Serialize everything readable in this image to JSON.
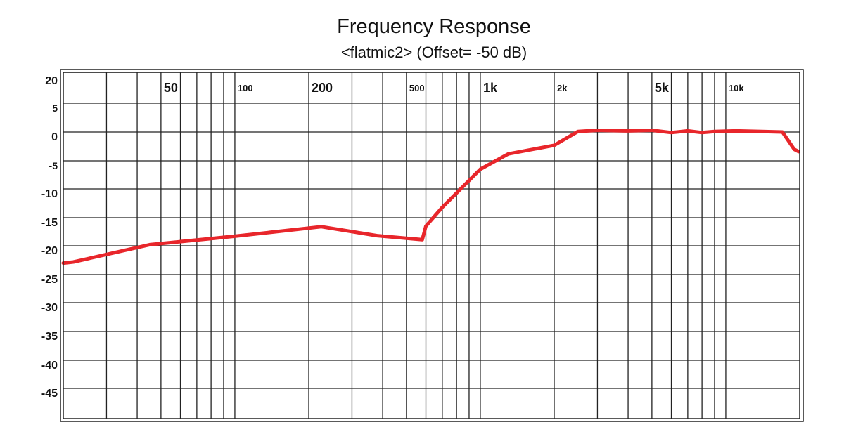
{
  "chart_data": {
    "type": "line",
    "title": "Frequency Response",
    "subtitle": "<flatmic2> (Offset= -50 dB)",
    "xlabel": "",
    "ylabel": "",
    "x_scale": "log",
    "xlim": [
      20,
      20000
    ],
    "y_ticks": [
      {
        "label": "20",
        "value": 20
      },
      {
        "label": "5",
        "value": 5
      },
      {
        "label": "0",
        "value": 0
      },
      {
        "label": "-5",
        "value": -5
      },
      {
        "label": "-10",
        "value": -10
      },
      {
        "label": "-15",
        "value": -15
      },
      {
        "label": "-20",
        "value": -20
      },
      {
        "label": "-25",
        "value": -25
      },
      {
        "label": "-30",
        "value": -30
      },
      {
        "label": "-35",
        "value": -35
      },
      {
        "label": "-40",
        "value": -40
      },
      {
        "label": "-45",
        "value": -45
      }
    ],
    "x_tick_labels": [
      {
        "label": "50",
        "value": 50,
        "size": "large"
      },
      {
        "label": "100",
        "value": 100,
        "size": "small"
      },
      {
        "label": "200",
        "value": 200,
        "size": "large"
      },
      {
        "label": "500",
        "value": 500,
        "size": "small"
      },
      {
        "label": "1k",
        "value": 1000,
        "size": "large"
      },
      {
        "label": "2k",
        "value": 2000,
        "size": "small"
      },
      {
        "label": "5k",
        "value": 5000,
        "size": "large"
      },
      {
        "label": "10k",
        "value": 10000,
        "size": "small"
      }
    ],
    "x_grid": [
      30,
      40,
      50,
      60,
      70,
      80,
      90,
      100,
      200,
      300,
      400,
      500,
      600,
      700,
      800,
      900,
      1000,
      2000,
      3000,
      4000,
      5000,
      6000,
      7000,
      8000,
      9000,
      10000
    ],
    "grid": true,
    "series": [
      {
        "color": "#e8262b",
        "x": [
          20,
          22,
          30,
          45,
          100,
          225,
          380,
          580,
          600,
          700,
          1000,
          1300,
          2000,
          2500,
          3000,
          4000,
          5000,
          6000,
          7000,
          8000,
          9000,
          11000,
          14000,
          17000,
          19000,
          19800
        ],
        "y": [
          -23,
          -22.8,
          -21.5,
          -19.8,
          -18.3,
          -16.6,
          -18.2,
          -18.9,
          -16.5,
          -13.2,
          -6.5,
          -3.8,
          -2.3,
          0.1,
          0.3,
          0.2,
          0.3,
          -0.1,
          0.2,
          -0.1,
          0.1,
          0.2,
          0.1,
          0.0,
          -3.0,
          -3.4
        ]
      }
    ]
  }
}
